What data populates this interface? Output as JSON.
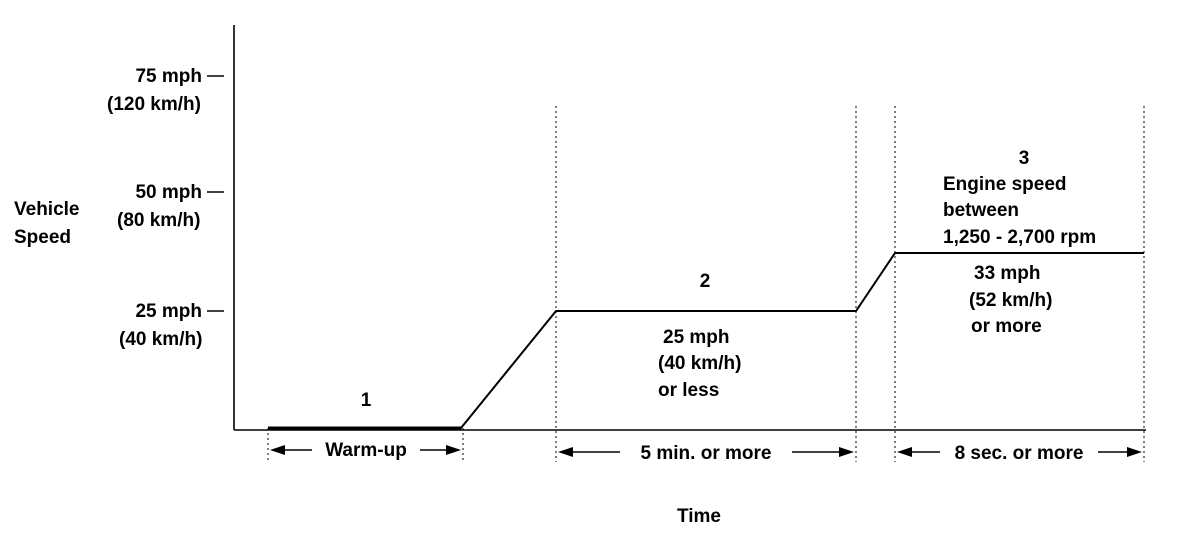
{
  "y_axis": {
    "label_line1": "Vehicle",
    "label_line2": "Speed",
    "ticks": [
      {
        "mph": "75 mph",
        "kmh": "(120 km/h)"
      },
      {
        "mph": "50 mph",
        "kmh": "(80 km/h)"
      },
      {
        "mph": "25 mph",
        "kmh": "(40 km/h)"
      }
    ]
  },
  "x_axis": {
    "label": "Time"
  },
  "phases": [
    {
      "number": "1",
      "duration": "Warm-up"
    },
    {
      "number": "2",
      "condition_line1": "25 mph",
      "condition_line2": "(40 km/h)",
      "condition_line3": "or less",
      "duration": "5 min. or more"
    },
    {
      "number": "3",
      "note_line1": "Engine speed",
      "note_line2": "between",
      "note_line3": "1,250 - 2,700 rpm",
      "condition_line1": "33 mph",
      "condition_line2": "(52 km/h)",
      "condition_line3": "or more",
      "duration": "8 sec. or more"
    }
  ]
}
